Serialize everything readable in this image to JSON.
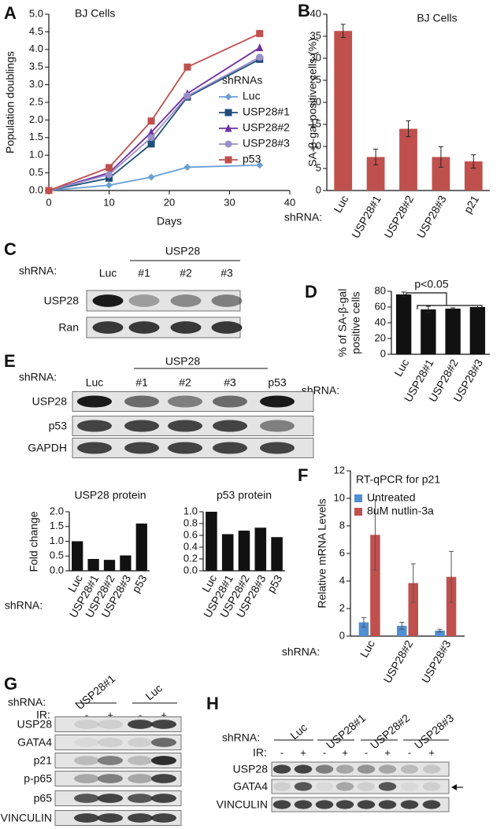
{
  "chart_data": [
    {
      "panel": "A",
      "type": "line",
      "title": "BJ Cells",
      "xlabel": "Days",
      "ylabel": "Population doublings",
      "legend_title": "shRNAs",
      "x": [
        0,
        10,
        17,
        23,
        35
      ],
      "xlim": [
        0,
        40
      ],
      "xticks": [
        0,
        10,
        20,
        30,
        40
      ],
      "ylim": [
        0,
        5
      ],
      "yticks": [
        {
          "value": 0,
          "label": "0.0"
        },
        0.5,
        {
          "value": 1,
          "label": "1.0"
        },
        1.5,
        {
          "value": 2,
          "label": "2.0"
        },
        2.5,
        {
          "value": 3,
          "label": "3.0"
        },
        3.5,
        {
          "value": 4,
          "label": "4.0"
        },
        4.5,
        {
          "value": 5,
          "label": "5.0"
        }
      ],
      "series": [
        {
          "name": "Luc",
          "color": "#6a9fd4",
          "marker": "diamond",
          "values": [
            0,
            0.15,
            0.38,
            0.66,
            0.72
          ]
        },
        {
          "name": "USP28#1",
          "color": "#1f4e79",
          "marker": "square",
          "values": [
            0,
            0.35,
            1.32,
            2.65,
            3.72
          ]
        },
        {
          "name": "USP28#2",
          "color": "#7030a0",
          "marker": "triangle",
          "values": [
            0,
            0.5,
            1.65,
            2.75,
            4.05
          ]
        },
        {
          "name": "USP28#3",
          "color": "#9b8fc7",
          "marker": "circle",
          "values": [
            0,
            0.45,
            1.5,
            2.68,
            3.78
          ]
        },
        {
          "name": "p53",
          "color": "#c0504d",
          "marker": "square",
          "values": [
            0,
            0.65,
            1.97,
            3.5,
            4.45
          ]
        }
      ]
    },
    {
      "panel": "B",
      "type": "bar",
      "title": "BJ Cells",
      "ylabel": "SA-β-gal positive cells (%)",
      "category_label": "shRNA:",
      "categories": [
        "Luc",
        "USP28#1",
        "USP28#2",
        "USP28#3",
        "p21"
      ],
      "ylim": [
        0,
        40
      ],
      "yticks": [
        0,
        5,
        10,
        15,
        20,
        25,
        30,
        35,
        40
      ],
      "series": [
        {
          "color": "#c0504d",
          "values": [
            36.2,
            7.6,
            14,
            7.6,
            6.6
          ],
          "errors": [
            1.5,
            1.8,
            1.8,
            2.3,
            1.5
          ]
        }
      ]
    },
    {
      "panel": "D",
      "type": "bar",
      "ylabel": [
        "% of SA-β-gal",
        "positive cells"
      ],
      "category_label": "shRNA:",
      "annotation": "p<0.05",
      "categories": [
        "Luc",
        "USP28#1",
        "USP28#2",
        "USP28#3"
      ],
      "ylim": [
        0,
        80
      ],
      "yticks": [
        0,
        20,
        40,
        60,
        80
      ],
      "series": [
        {
          "color": "#111111",
          "values": [
            76,
            57,
            58,
            60
          ],
          "errors": [
            3,
            4,
            1,
            2
          ]
        }
      ]
    },
    {
      "type": "bar",
      "title": "USP28 protein",
      "ylabel": "Fold change",
      "category_label": "shRNA:",
      "categories": [
        "Luc",
        "USP28#1",
        "USP28#2",
        "USP28#3",
        "p53"
      ],
      "ylim": [
        0,
        2
      ],
      "yticks": [
        {
          "value": 0,
          "label": "0.0"
        },
        0.5,
        {
          "value": 1,
          "label": "1.0"
        },
        1.5,
        {
          "value": 2,
          "label": "2.0"
        }
      ],
      "series": [
        {
          "color": "#111111",
          "values": [
            1.0,
            0.4,
            0.37,
            0.52,
            1.6
          ]
        }
      ]
    },
    {
      "type": "bar",
      "title": "p53 protein",
      "categories": [
        "Luc",
        "USP28#1",
        "USP28#2",
        "USP28#3",
        "p53"
      ],
      "ylim": [
        0,
        1
      ],
      "yticks": [
        {
          "value": 0,
          "label": "0.0"
        },
        0.2,
        0.4,
        0.6,
        0.8,
        {
          "value": 1,
          "label": "1.0"
        }
      ],
      "series": [
        {
          "color": "#111111",
          "values": [
            1.0,
            0.62,
            0.68,
            0.73,
            0.57
          ]
        }
      ]
    },
    {
      "panel": "F",
      "type": "bar",
      "title": "RT-qPCR for p21",
      "ylabel": "Relative mRNA  Levels",
      "category_label": "shRNA:",
      "categories": [
        "Luc",
        "USP28#2",
        "USP28#3"
      ],
      "ylim": [
        0,
        12
      ],
      "yticks": [
        0,
        2,
        4,
        6,
        8,
        10,
        12
      ],
      "series": [
        {
          "name": "Untreated",
          "color": "#4f8fd6",
          "values": [
            1.0,
            0.75,
            0.4
          ],
          "errors": [
            0.35,
            0.25,
            0.1
          ]
        },
        {
          "name": "8uM nutlin-3a",
          "color": "#c0504d",
          "values": [
            7.35,
            3.85,
            4.3
          ],
          "errors": [
            2.55,
            1.4,
            1.85
          ]
        }
      ]
    }
  ],
  "blots": [
    {
      "panel": "C",
      "shrna_label": "shRNA:",
      "group_label": "USP28",
      "lanes": [
        "Luc",
        "#1",
        "#2",
        "#3"
      ],
      "rows": [
        "USP28",
        "Ran"
      ]
    },
    {
      "panel": "E",
      "shrna_label": "shRNA:",
      "group_label": "USP28",
      "lanes": [
        "Luc",
        "#1",
        "#2",
        "#3",
        "p53"
      ],
      "rows": [
        "USP28",
        "p53",
        "GAPDH"
      ]
    },
    {
      "panel": "G",
      "shrna_label": "shRNA:",
      "groups": [
        "USP28#1",
        "Luc"
      ],
      "ir_label": "IR:",
      "ir": [
        "-",
        "+",
        "-",
        "+"
      ],
      "rows": [
        "USP28",
        "GATA4",
        "p21",
        "p-p65",
        "p65",
        "VINCULIN"
      ]
    },
    {
      "panel": "H",
      "shrna_label": "shRNA:",
      "groups": [
        "Luc",
        "USP28#1",
        "USP28#2",
        "USP28#3"
      ],
      "ir_label": "IR:",
      "ir": [
        "-",
        "+",
        "-",
        "+",
        "-",
        "+",
        "-",
        "+"
      ],
      "rows": [
        "USP28",
        "GATA4",
        "VINCULIN"
      ]
    }
  ]
}
